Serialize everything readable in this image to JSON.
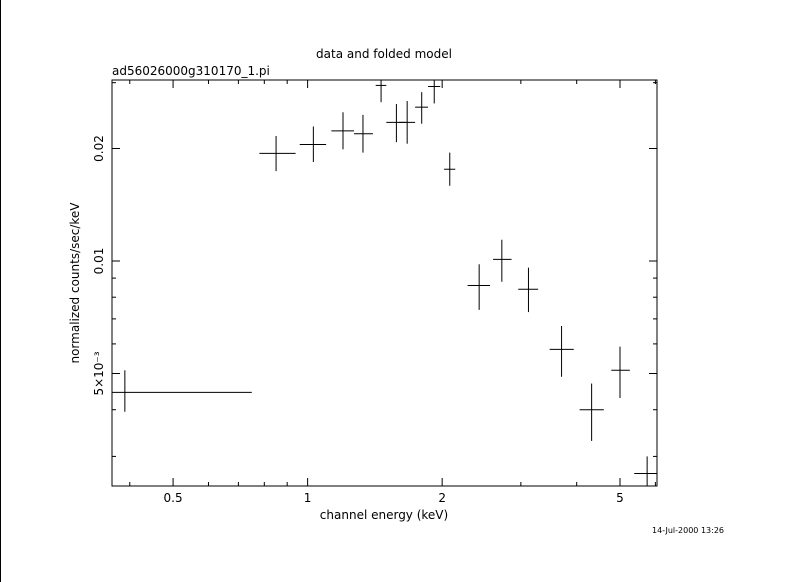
{
  "chart_data": {
    "type": "scatter",
    "title": "data and folded model",
    "subtitle": "ad56026000g310170_1.pi",
    "xlabel": "channel energy (keV)",
    "ylabel": "normalized counts/sec/keV",
    "x_scale": "log",
    "y_scale": "log",
    "xlim": [
      0.365,
      6.05
    ],
    "ylim": [
      0.0025,
      0.0305
    ],
    "x_ticks": [
      {
        "value": 0.5,
        "label": "0.5"
      },
      {
        "value": 1,
        "label": "1"
      },
      {
        "value": 2,
        "label": "2"
      },
      {
        "value": 5,
        "label": "5"
      }
    ],
    "y_ticks": [
      {
        "value": 0.005,
        "label": "5×10⁻³"
      },
      {
        "value": 0.01,
        "label": "0.01"
      },
      {
        "value": 0.02,
        "label": "0.02"
      }
    ],
    "series": [
      {
        "points": [
          {
            "x": 0.39,
            "xlo": 0.365,
            "xhi": 0.75,
            "y": 0.00445,
            "ylo": 0.00395,
            "yhi": 0.0051
          },
          {
            "x": 0.85,
            "xlo": 0.78,
            "xhi": 0.94,
            "y": 0.0194,
            "ylo": 0.0174,
            "yhi": 0.0216
          },
          {
            "x": 1.03,
            "xlo": 0.96,
            "xhi": 1.1,
            "y": 0.0205,
            "ylo": 0.0184,
            "yhi": 0.0229
          },
          {
            "x": 1.2,
            "xlo": 1.13,
            "xhi": 1.27,
            "y": 0.0223,
            "ylo": 0.0199,
            "yhi": 0.025
          },
          {
            "x": 1.33,
            "xlo": 1.27,
            "xhi": 1.4,
            "y": 0.0219,
            "ylo": 0.0195,
            "yhi": 0.0246
          },
          {
            "x": 1.46,
            "xlo": 1.42,
            "xhi": 1.5,
            "y": 0.0295,
            "ylo": 0.0266,
            "yhi": 0.0305
          },
          {
            "x": 1.58,
            "xlo": 1.5,
            "xhi": 1.66,
            "y": 0.0235,
            "ylo": 0.0208,
            "yhi": 0.0263
          },
          {
            "x": 1.67,
            "xlo": 1.6,
            "xhi": 1.74,
            "y": 0.0235,
            "ylo": 0.0206,
            "yhi": 0.0268
          },
          {
            "x": 1.8,
            "xlo": 1.74,
            "xhi": 1.86,
            "y": 0.0258,
            "ylo": 0.0233,
            "yhi": 0.0283
          },
          {
            "x": 1.92,
            "xlo": 1.86,
            "xhi": 1.98,
            "y": 0.0293,
            "ylo": 0.0264,
            "yhi": 0.0305
          },
          {
            "x": 2.08,
            "xlo": 2.02,
            "xhi": 2.14,
            "y": 0.0176,
            "ylo": 0.0159,
            "yhi": 0.0195
          },
          {
            "x": 2.42,
            "xlo": 2.28,
            "xhi": 2.56,
            "y": 0.0086,
            "ylo": 0.0074,
            "yhi": 0.0098
          },
          {
            "x": 2.72,
            "xlo": 2.6,
            "xhi": 2.86,
            "y": 0.0101,
            "ylo": 0.0088,
            "yhi": 0.0114
          },
          {
            "x": 3.12,
            "xlo": 2.96,
            "xhi": 3.28,
            "y": 0.0084,
            "ylo": 0.0073,
            "yhi": 0.0096
          },
          {
            "x": 3.7,
            "xlo": 3.48,
            "xhi": 3.94,
            "y": 0.0058,
            "ylo": 0.0049,
            "yhi": 0.0067
          },
          {
            "x": 4.32,
            "xlo": 4.06,
            "xhi": 4.6,
            "y": 0.004,
            "ylo": 0.0033,
            "yhi": 0.0047
          },
          {
            "x": 5.0,
            "xlo": 4.78,
            "xhi": 5.26,
            "y": 0.0051,
            "ylo": 0.0043,
            "yhi": 0.0059
          },
          {
            "x": 5.75,
            "xlo": 5.38,
            "xhi": 6.05,
            "y": 0.0027,
            "ylo": 0.0025,
            "yhi": 0.003
          }
        ]
      }
    ]
  },
  "timestamp": "14-Jul-2000 13:26"
}
